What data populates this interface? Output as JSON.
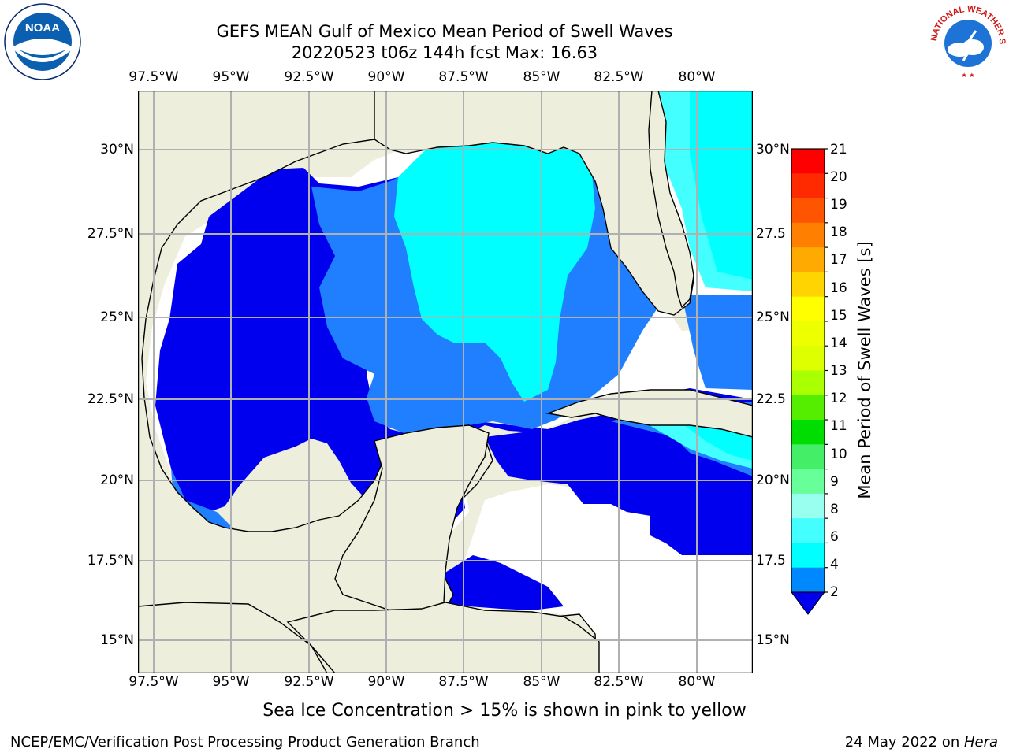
{
  "title": {
    "line1": "GEFS MEAN Gulf of Mexico Mean Period of Swell Waves",
    "line2": "20220523 t06z 144h fcst   Max: 16.63"
  },
  "axes": {
    "lon_labels": [
      "97.5°W",
      "95°W",
      "92.5°W",
      "90°W",
      "87.5°W",
      "85°W",
      "82.5°W",
      "80°W"
    ],
    "lat_labels": [
      "30°N",
      "27.5°N",
      "25°N",
      "22.5°N",
      "20°N",
      "17.5°N",
      "15°N"
    ],
    "lat_labels_right": [
      "30°N",
      "27.5",
      "25°N",
      "22.5",
      "20°N",
      "17.5",
      "15°N"
    ]
  },
  "colorbar": {
    "label": "Mean Period of Swell Waves [s]",
    "ticks": [
      "21",
      "20",
      "19",
      "18",
      "17",
      "16",
      "15",
      "14",
      "13",
      "12",
      "11",
      "10",
      "9",
      "8",
      "6",
      "4",
      "2"
    ],
    "colors": [
      "#ff0000",
      "#ff2a00",
      "#ff5500",
      "#ff8000",
      "#ffaa00",
      "#ffd400",
      "#ffff00",
      "#eeff00",
      "#ddff00",
      "#aaff00",
      "#55ee00",
      "#00dd00",
      "#44ee66",
      "#66ff99",
      "#99ffee",
      "#44ffff",
      "#00ffff",
      "#0088ff"
    ],
    "under_color": "#0000ee"
  },
  "map_colors": {
    "land": "#eeeedd",
    "ocean_2_4": "#0000ee",
    "ocean_4_6": "#1f7fff",
    "ocean_6_8": "#00ffff",
    "ocean_8_9": "#44ffff",
    "grid": "#b0b0b0"
  },
  "logos": {
    "noaa_text": "NOAA",
    "nws_text": "NATIONAL WEATHER SERVICE"
  },
  "footer": {
    "note": "Sea Ice Concentration > 15% is shown in pink to yellow",
    "credit": "NCEP/EMC/Verification Post Processing Product Generation Branch",
    "date_prefix": "24 May 2022 on ",
    "date_host": "Hera"
  }
}
